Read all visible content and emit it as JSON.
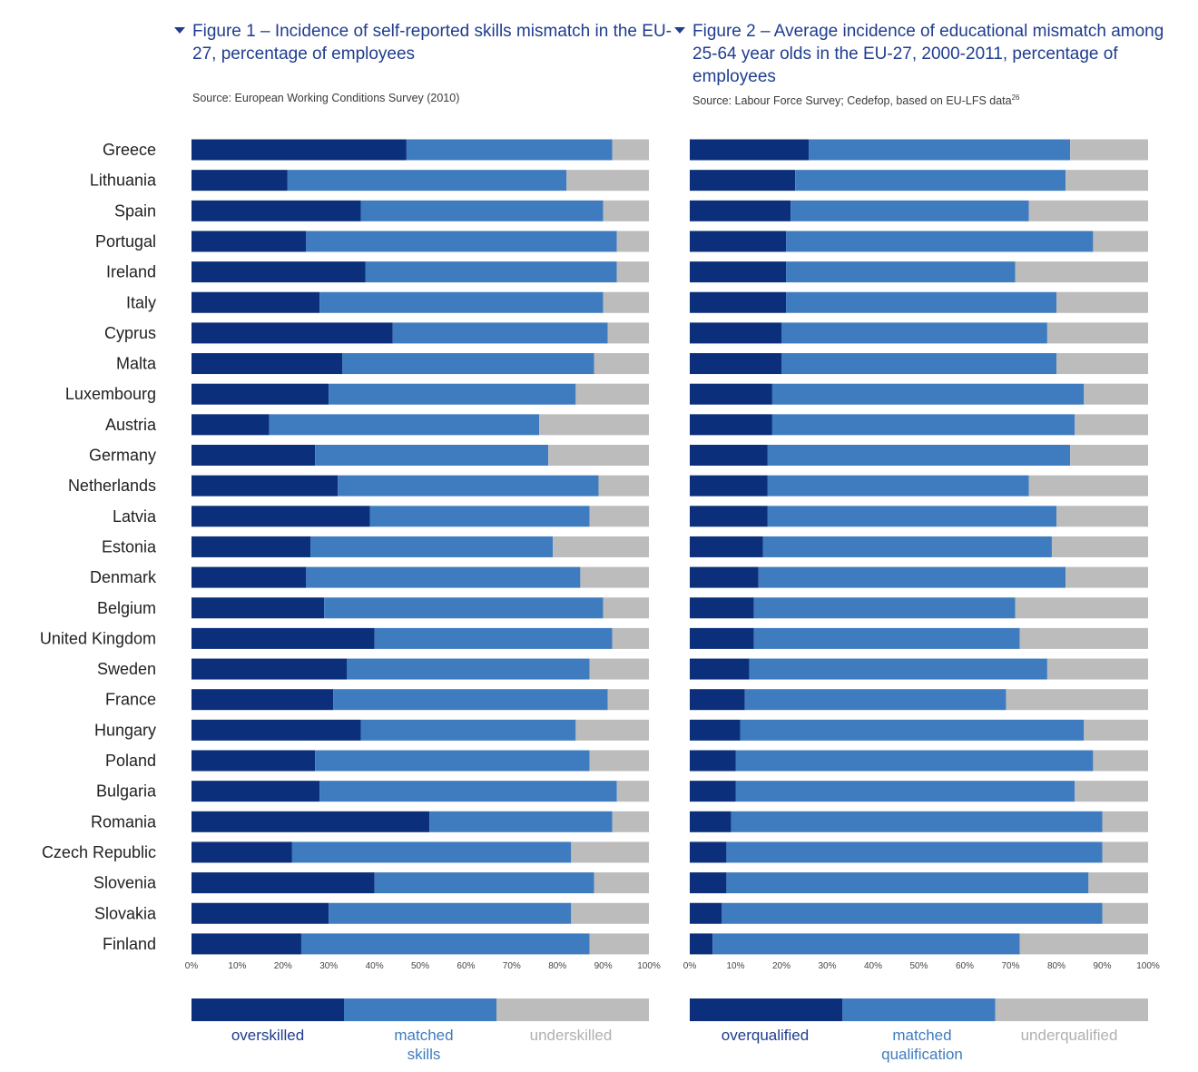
{
  "figures": [
    {
      "title": "Figure 1 – Incidence of self-reported skills mismatch in the EU-27, percentage of employees",
      "source": "Source: European Working Conditions Survey (2010)",
      "legend": [
        "overskilled",
        "matched skills",
        "underskilled"
      ]
    },
    {
      "title": "Figure 2 – Average incidence of educational mismatch among 25-64 year olds in the EU-27, 2000-2011, percentage of employees",
      "source": "Source: Labour Force Survey; Cedefop, based on EU-LFS data",
      "source_footnote": "26",
      "legend": [
        "overqualified",
        "matched qualification",
        "underqualified"
      ]
    }
  ],
  "colors": {
    "over": "#0b2f7a",
    "matched": "#3f7cbf",
    "under": "#bcbcbc",
    "title": "#1f3d8f"
  },
  "chart_data": [
    {
      "type": "bar",
      "orientation": "horizontal",
      "stacked": true,
      "categories": [
        "Greece",
        "Lithuania",
        "Spain",
        "Portugal",
        "Ireland",
        "Italy",
        "Cyprus",
        "Malta",
        "Luxembourg",
        "Austria",
        "Germany",
        "Netherlands",
        "Latvia",
        "Estonia",
        "Denmark",
        "Belgium",
        "United Kingdom",
        "Sweden",
        "France",
        "Hungary",
        "Poland",
        "Bulgaria",
        "Romania",
        "Czech Republic",
        "Slovenia",
        "Slovakia",
        "Finland"
      ],
      "series": [
        {
          "name": "overskilled",
          "values": [
            47,
            21,
            37,
            25,
            38,
            28,
            44,
            33,
            30,
            17,
            27,
            32,
            39,
            26,
            25,
            29,
            40,
            34,
            31,
            37,
            27,
            28,
            52,
            22,
            40,
            30,
            24
          ]
        },
        {
          "name": "matched skills",
          "values": [
            45,
            61,
            53,
            68,
            55,
            62,
            47,
            55,
            54,
            59,
            51,
            57,
            48,
            53,
            60,
            61,
            52,
            53,
            60,
            47,
            60,
            65,
            40,
            61,
            48,
            53,
            63
          ]
        },
        {
          "name": "underskilled",
          "values": [
            8,
            18,
            10,
            7,
            7,
            10,
            9,
            12,
            16,
            24,
            22,
            11,
            13,
            21,
            15,
            10,
            8,
            13,
            9,
            16,
            13,
            7,
            8,
            17,
            12,
            17,
            13
          ]
        }
      ],
      "xlim": [
        0,
        100
      ],
      "xticks": [
        "0%",
        "10%",
        "20%",
        "30%",
        "40%",
        "50%",
        "60%",
        "70%",
        "80%",
        "90%",
        "100%"
      ]
    },
    {
      "type": "bar",
      "orientation": "horizontal",
      "stacked": true,
      "categories": [
        "Greece",
        "Lithuania",
        "Spain",
        "Portugal",
        "Ireland",
        "Italy",
        "Cyprus",
        "Malta",
        "Luxembourg",
        "Austria",
        "Germany",
        "Netherlands",
        "Latvia",
        "Estonia",
        "Denmark",
        "Belgium",
        "United Kingdom",
        "Sweden",
        "France",
        "Hungary",
        "Poland",
        "Bulgaria",
        "Romania",
        "Czech Republic",
        "Slovenia",
        "Slovakia",
        "Finland"
      ],
      "series": [
        {
          "name": "overqualified",
          "values": [
            26,
            23,
            22,
            21,
            21,
            21,
            20,
            20,
            18,
            18,
            17,
            17,
            17,
            16,
            15,
            14,
            14,
            13,
            12,
            11,
            10,
            10,
            9,
            8,
            8,
            7,
            5
          ]
        },
        {
          "name": "matched qualification",
          "values": [
            57,
            59,
            52,
            67,
            50,
            59,
            58,
            60,
            68,
            66,
            66,
            57,
            63,
            63,
            67,
            57,
            58,
            65,
            57,
            75,
            78,
            74,
            81,
            82,
            79,
            83,
            67
          ]
        },
        {
          "name": "underqualified",
          "values": [
            17,
            18,
            26,
            12,
            29,
            20,
            22,
            20,
            14,
            16,
            17,
            26,
            20,
            21,
            18,
            29,
            28,
            22,
            31,
            14,
            12,
            16,
            10,
            10,
            13,
            10,
            28
          ]
        }
      ],
      "xlim": [
        0,
        100
      ],
      "xticks": [
        "0%",
        "10%",
        "20%",
        "30%",
        "40%",
        "50%",
        "60%",
        "70%",
        "80%",
        "90%",
        "100%"
      ]
    }
  ]
}
